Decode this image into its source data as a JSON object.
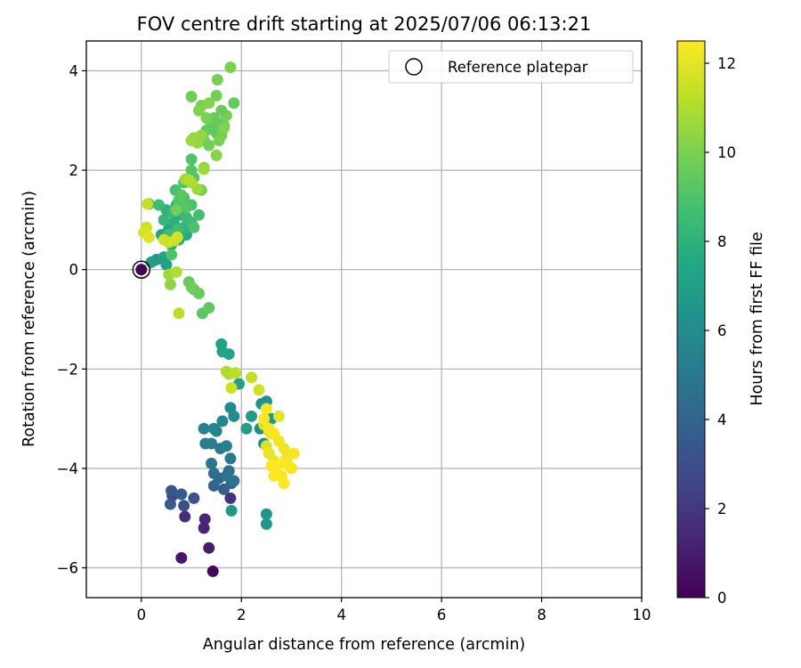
{
  "chart_data": {
    "type": "scatter",
    "title": "FOV centre drift starting at 2025/07/06 06:13:21",
    "xlabel": "Angular distance from reference (arcmin)",
    "ylabel": "Rotation from reference (arcmin)",
    "xlim": [
      -1.1,
      10
    ],
    "ylim": [
      -6.6,
      4.6
    ],
    "xticks": [
      0,
      2,
      4,
      6,
      8,
      10
    ],
    "yticks": [
      -6,
      -4,
      -2,
      0,
      2,
      4
    ],
    "grid": true,
    "legend": {
      "placement": "top-right",
      "entries": [
        "Reference platepar"
      ]
    },
    "reference_point": {
      "x": 0,
      "y": 0
    },
    "colorbar": {
      "label": "Hours from first FF file",
      "range": [
        0,
        12.5
      ],
      "ticks": [
        0,
        2,
        4,
        6,
        8,
        10,
        12
      ],
      "colormap": "viridis"
    },
    "series": [
      {
        "fields": [
          "x",
          "y",
          "hours"
        ],
        "points": [
          [
            1.43,
            -6.07,
            0.2
          ],
          [
            0.8,
            -5.8,
            0.8
          ],
          [
            1.35,
            -5.6,
            1.0
          ],
          [
            1.25,
            -5.2,
            1.3
          ],
          [
            1.27,
            -5.02,
            1.4
          ],
          [
            0.87,
            -4.97,
            1.6
          ],
          [
            1.78,
            -4.6,
            1.8
          ],
          [
            0.62,
            -4.55,
            2.8
          ],
          [
            0.85,
            -4.75,
            3.0
          ],
          [
            1.05,
            -4.6,
            3.2
          ],
          [
            0.6,
            -4.45,
            3.4
          ],
          [
            0.8,
            -4.52,
            3.5
          ],
          [
            0.58,
            -4.72,
            3.6
          ],
          [
            1.65,
            -4.42,
            3.8
          ],
          [
            1.45,
            -4.35,
            3.9
          ],
          [
            1.8,
            -4.3,
            4.1
          ],
          [
            1.55,
            -4.2,
            4.2
          ],
          [
            1.45,
            -4.1,
            4.5
          ],
          [
            1.75,
            -4.05,
            4.6
          ],
          [
            1.85,
            -4.25,
            4.7
          ],
          [
            1.7,
            -4.15,
            4.8
          ],
          [
            1.4,
            -3.9,
            4.9
          ],
          [
            1.78,
            -3.8,
            5.0
          ],
          [
            1.58,
            -3.6,
            5.1
          ],
          [
            1.4,
            -3.5,
            5.2
          ],
          [
            1.28,
            -3.5,
            5.3
          ],
          [
            1.7,
            -3.55,
            5.4
          ],
          [
            1.5,
            -3.25,
            5.4
          ],
          [
            1.25,
            -3.2,
            5.5
          ],
          [
            1.45,
            -3.2,
            5.6
          ],
          [
            1.62,
            -3.05,
            5.7
          ],
          [
            1.78,
            -2.78,
            5.8
          ],
          [
            1.85,
            -2.95,
            5.9
          ],
          [
            2.37,
            -3.2,
            6.0
          ],
          [
            2.45,
            -3.5,
            6.1
          ],
          [
            2.5,
            -2.65,
            6.2
          ],
          [
            2.4,
            -2.7,
            6.3
          ],
          [
            2.5,
            -4.92,
            6.4
          ],
          [
            1.8,
            -4.85,
            6.5
          ],
          [
            2.5,
            -5.12,
            6.6
          ],
          [
            2.6,
            -3.0,
            6.7
          ],
          [
            2.2,
            -2.95,
            6.8
          ],
          [
            2.1,
            -3.2,
            6.9
          ],
          [
            1.95,
            -2.3,
            7.0
          ],
          [
            1.6,
            -1.5,
            7.1
          ],
          [
            1.75,
            -1.7,
            7.2
          ],
          [
            1.62,
            -1.65,
            7.3
          ],
          [
            0.3,
            0.2,
            6.8
          ],
          [
            0.2,
            0.15,
            6.9
          ],
          [
            0.5,
            0.1,
            7.0
          ],
          [
            0.45,
            0.25,
            7.1
          ],
          [
            0.6,
            0.5,
            7.3
          ],
          [
            0.4,
            0.7,
            7.4
          ],
          [
            0.55,
            0.82,
            7.5
          ],
          [
            0.75,
            0.6,
            7.6
          ],
          [
            0.9,
            0.7,
            7.7
          ],
          [
            0.65,
            0.95,
            7.8
          ],
          [
            0.8,
            1.1,
            7.9
          ],
          [
            0.5,
            1.2,
            8.0
          ],
          [
            0.7,
            1.3,
            8.1
          ],
          [
            0.45,
            1.0,
            8.2
          ],
          [
            0.85,
            0.85,
            8.2
          ],
          [
            0.62,
            1.15,
            8.3
          ],
          [
            0.9,
            1.05,
            8.4
          ],
          [
            0.55,
            0.7,
            8.5
          ],
          [
            1.0,
            0.95,
            8.5
          ],
          [
            0.72,
            0.8,
            8.6
          ],
          [
            0.35,
            1.3,
            8.6
          ],
          [
            0.15,
            1.32,
            8.7
          ],
          [
            1.15,
            1.1,
            8.7
          ],
          [
            0.68,
            1.6,
            8.8
          ],
          [
            1.0,
            1.3,
            8.8
          ],
          [
            0.85,
            1.45,
            8.9
          ],
          [
            1.05,
            0.85,
            8.9
          ],
          [
            0.6,
            0.3,
            9.0
          ],
          [
            0.85,
            1.75,
            9.0
          ],
          [
            1.0,
            2.22,
            9.0
          ],
          [
            1.05,
            1.85,
            9.1
          ],
          [
            0.75,
            1.4,
            9.1
          ],
          [
            0.9,
            1.25,
            9.2
          ],
          [
            1.0,
            2.0,
            9.2
          ],
          [
            0.8,
            1.5,
            9.3
          ],
          [
            1.25,
            2.6,
            9.3
          ],
          [
            1.4,
            2.95,
            9.4
          ],
          [
            1.5,
            2.75,
            9.4
          ],
          [
            1.55,
            2.95,
            9.5
          ],
          [
            1.3,
            2.8,
            9.5
          ],
          [
            1.65,
            2.9,
            9.6
          ],
          [
            1.45,
            3.05,
            9.6
          ],
          [
            1.2,
            2.65,
            9.7
          ],
          [
            1.6,
            2.7,
            9.7
          ],
          [
            1.35,
            2.5,
            9.8
          ],
          [
            1.5,
            3.5,
            9.8
          ],
          [
            1.7,
            3.1,
            9.9
          ],
          [
            1.2,
            3.3,
            9.9
          ],
          [
            1.55,
            2.6,
            10.0
          ],
          [
            1.3,
            3.05,
            10.0
          ],
          [
            1.65,
            2.85,
            10.1
          ],
          [
            1.85,
            3.35,
            9.5
          ],
          [
            1.6,
            3.2,
            9.6
          ],
          [
            1.0,
            3.48,
            9.7
          ],
          [
            1.52,
            3.82,
            9.9
          ],
          [
            1.78,
            4.07,
            10.0
          ],
          [
            1.15,
            3.2,
            10.1
          ],
          [
            1.35,
            3.35,
            10.2
          ],
          [
            1.5,
            2.3,
            10.2
          ],
          [
            1.25,
            2.05,
            10.3
          ],
          [
            1.22,
            -0.88,
            9.3
          ],
          [
            1.35,
            -0.77,
            9.4
          ],
          [
            1.05,
            -0.4,
            9.5
          ],
          [
            0.95,
            -0.25,
            9.5
          ],
          [
            1.15,
            -0.48,
            9.6
          ],
          [
            1.0,
            -0.35,
            9.7
          ],
          [
            0.7,
            1.2,
            9.8
          ],
          [
            1.2,
            1.6,
            9.9
          ],
          [
            1.05,
            2.65,
            10.4
          ],
          [
            1.2,
            2.7,
            10.5
          ],
          [
            1.12,
            2.55,
            10.5
          ],
          [
            1.0,
            2.6,
            10.6
          ],
          [
            1.25,
            2.02,
            10.6
          ],
          [
            1.12,
            1.62,
            10.6
          ],
          [
            0.88,
            1.82,
            10.8
          ],
          [
            1.0,
            1.75,
            10.9
          ],
          [
            0.95,
            1.8,
            11.0
          ],
          [
            0.58,
            -0.3,
            10.4
          ],
          [
            0.55,
            -0.1,
            10.6
          ],
          [
            0.7,
            -0.05,
            11.0
          ],
          [
            0.75,
            -0.88,
            11.2
          ],
          [
            0.65,
            0.58,
            11.4
          ],
          [
            0.55,
            0.55,
            11.5
          ],
          [
            0.45,
            0.6,
            11.6
          ],
          [
            0.72,
            0.65,
            11.7
          ],
          [
            0.1,
            0.85,
            11.6
          ],
          [
            0.05,
            0.75,
            11.8
          ],
          [
            0.15,
            0.65,
            11.9
          ],
          [
            0.12,
            1.32,
            11.4
          ],
          [
            1.75,
            -2.1,
            10.8
          ],
          [
            1.7,
            -2.05,
            11.0
          ],
          [
            1.88,
            -2.08,
            11.2
          ],
          [
            2.2,
            -2.17,
            11.3
          ],
          [
            1.8,
            -2.38,
            11.5
          ],
          [
            2.35,
            -2.42,
            11.6
          ],
          [
            2.45,
            -3.12,
            11.7
          ],
          [
            2.55,
            -3.25,
            11.8
          ],
          [
            2.5,
            -3.55,
            11.9
          ],
          [
            2.6,
            -3.3,
            12.0
          ],
          [
            2.75,
            -2.95,
            12.0
          ],
          [
            2.55,
            -3.7,
            12.1
          ],
          [
            2.65,
            -3.85,
            12.1
          ],
          [
            2.75,
            -3.45,
            12.2
          ],
          [
            2.85,
            -3.6,
            12.2
          ],
          [
            2.9,
            -3.8,
            12.3
          ],
          [
            2.7,
            -4.1,
            12.3
          ],
          [
            2.95,
            -3.95,
            12.3
          ],
          [
            2.8,
            -4.15,
            12.4
          ],
          [
            3.0,
            -4.0,
            12.4
          ],
          [
            3.05,
            -3.7,
            12.4
          ],
          [
            2.85,
            -4.3,
            12.5
          ],
          [
            2.6,
            -3.95,
            12.5
          ],
          [
            2.65,
            -4.15,
            12.5
          ],
          [
            2.55,
            -3.2,
            12.5
          ],
          [
            2.65,
            -3.3,
            12.4
          ],
          [
            2.5,
            -2.8,
            12.4
          ],
          [
            2.45,
            -3.0,
            12.5
          ],
          [
            2.8,
            -3.9,
            12.5
          ]
        ]
      }
    ]
  }
}
